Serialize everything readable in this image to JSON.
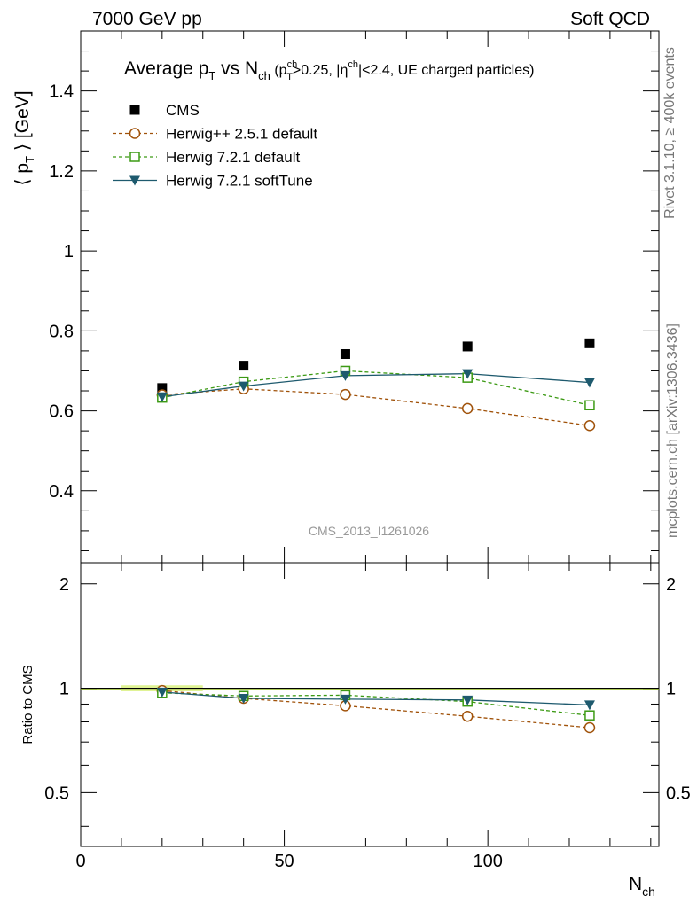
{
  "header": {
    "left": "7000 GeV pp",
    "right": "Soft QCD"
  },
  "side_labels": {
    "rivet": "Rivet 3.1.10, ≥ 400k events",
    "mcplots": "mcplots.cern.ch [arXiv:1306.3436]"
  },
  "chart_data": {
    "type": "scatter",
    "title_parts": {
      "t1": "Average p",
      "t1_sub": "T",
      "t2": " vs N",
      "t2_sub": "ch",
      "t3": " (p",
      "t3_sup": "ch",
      "t3_sub": "T",
      "t4": ">0.25, |η",
      "t4_sup": "ch",
      "t5": "|<2.4, UE charged particles)"
    },
    "analysis_id": "CMS_2013_I1261026",
    "ylabel": {
      "pre": "⟨ p",
      "sub": "T",
      "post": " ⟩ [GeV]"
    },
    "ratio_ylabel": "Ratio to CMS",
    "xlabel": {
      "main": "N",
      "sub": "ch"
    },
    "x_ticks": [
      "0",
      "50",
      "100"
    ],
    "y_ticks_main": [
      "0.4",
      "0.6",
      "0.8",
      "1",
      "1.2",
      "1.4"
    ],
    "y_ticks_ratio": [
      "0.5",
      "1",
      "2"
    ],
    "xlim": [
      0,
      142
    ],
    "ylim_main": [
      0.22,
      1.55
    ],
    "ylim_ratio": [
      0.35,
      2.3
    ],
    "x": [
      20,
      40,
      65,
      95,
      125
    ],
    "series": [
      {
        "name": "CMS",
        "marker": "filled-square",
        "line": "none",
        "color": "#000000",
        "values": [
          0.657,
          0.713,
          0.742,
          0.761,
          0.769
        ],
        "ratio": [
          1.0,
          1.0,
          1.0,
          1.0,
          1.0
        ]
      },
      {
        "name": "Herwig++ 2.5.1 default",
        "marker": "open-circle",
        "line": "dashed",
        "color": "#a0520a",
        "values": [
          0.64,
          0.655,
          0.641,
          0.606,
          0.563
        ],
        "ratio": [
          0.985,
          0.935,
          0.89,
          0.83,
          0.77
        ]
      },
      {
        "name": "Herwig 7.2.1 default",
        "marker": "open-square",
        "line": "dashed",
        "color": "#3c9a14",
        "values": [
          0.633,
          0.673,
          0.7,
          0.683,
          0.614
        ],
        "ratio": [
          0.97,
          0.95,
          0.955,
          0.915,
          0.835
        ]
      },
      {
        "name": "Herwig 7.2.1 softTune",
        "marker": "filled-triangle-down",
        "line": "solid",
        "color": "#1e5a6e",
        "values": [
          0.635,
          0.662,
          0.688,
          0.693,
          0.671
        ],
        "ratio": [
          0.975,
          0.935,
          0.93,
          0.925,
          0.895
        ]
      }
    ],
    "ratio_band": {
      "x_range": [
        10,
        30
      ],
      "color": "#d8f07a"
    }
  }
}
